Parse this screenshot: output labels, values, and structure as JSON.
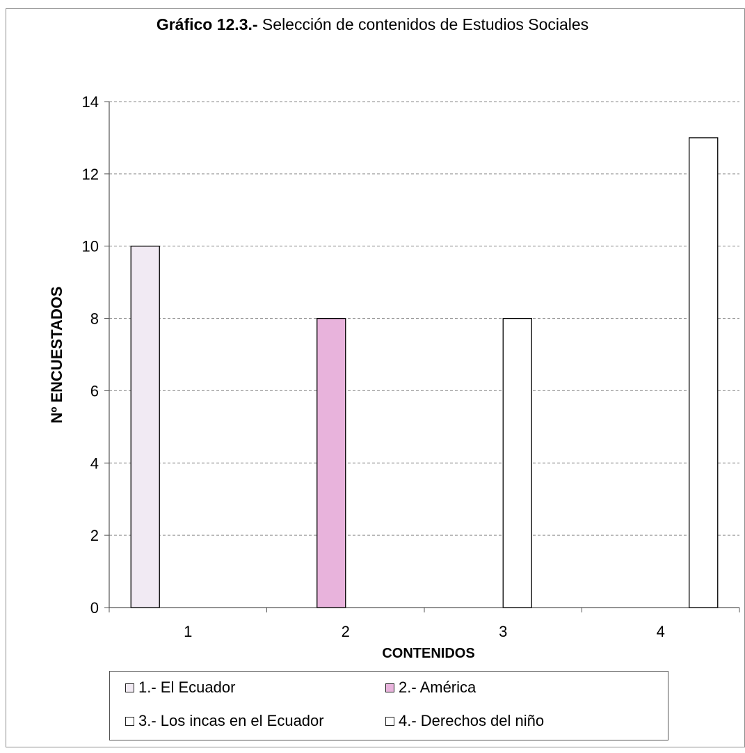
{
  "title": {
    "bold_part": "Gráfico 12.3.-",
    "rest": " Selección de contenidos de Estudios Sociales"
  },
  "chart_data": {
    "type": "bar",
    "title": "Gráfico 12.3.- Selección de contenidos de Estudios Sociales",
    "xlabel": "CONTENIDOS",
    "ylabel": "Nº ENCUESTADOS",
    "categories": [
      "1",
      "2",
      "3",
      "4"
    ],
    "series": [
      {
        "name": "1.- El Ecuador",
        "values": [
          10,
          null,
          null,
          null
        ],
        "color": "#f1eaf3"
      },
      {
        "name": "2.- América",
        "values": [
          null,
          8,
          null,
          null
        ],
        "color": "#e8b3dc"
      },
      {
        "name": "3.- Los incas en el Ecuador",
        "values": [
          null,
          null,
          8,
          null
        ],
        "color": "#ffffff"
      },
      {
        "name": "4.- Derechos del niño",
        "values": [
          null,
          null,
          null,
          13
        ],
        "color": "#ffffff"
      }
    ],
    "ylim": [
      0,
      14
    ],
    "yticks": [
      0,
      2,
      4,
      6,
      8,
      10,
      12,
      14
    ],
    "grid": true,
    "legend_position": "bottom"
  }
}
